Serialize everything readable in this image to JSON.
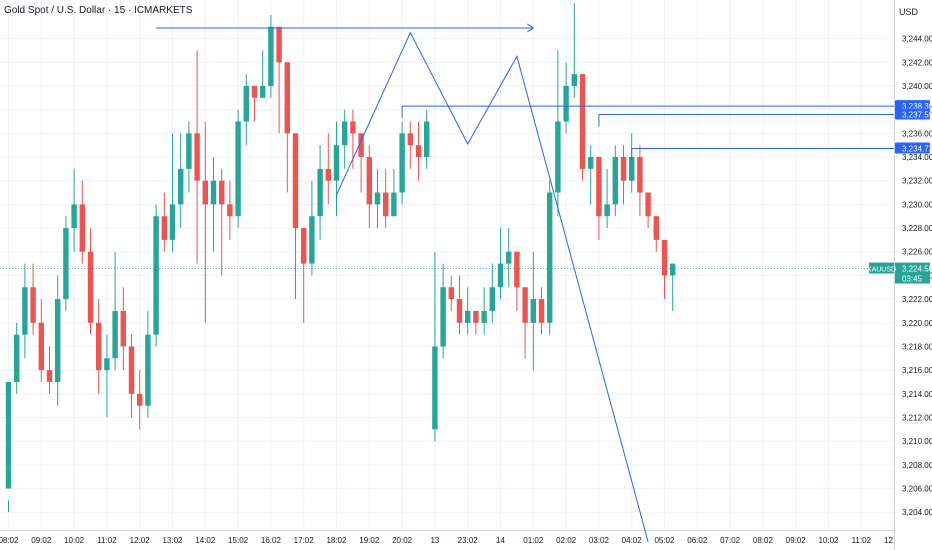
{
  "header": {
    "title": "Gold Spot / U.S. Dollar · 15 · ICMARKETS",
    "currency": "USD"
  },
  "colors": {
    "up": "#26a69a",
    "down": "#ef5350",
    "drawing": "#2962ff",
    "current_line": "#26a69a",
    "grid": "#f0f3fa",
    "axis_text": "#131722"
  },
  "chart_data": {
    "type": "candlestick",
    "symbol": "XAUUSD",
    "ylim": [
      3202.5,
      3246.5
    ],
    "y_ticks": [
      3204,
      3206,
      3208,
      3210,
      3212,
      3214,
      3216,
      3218,
      3220,
      3222,
      3224,
      3226,
      3228,
      3230,
      3232,
      3234,
      3236,
      3238,
      3240,
      3242,
      3244
    ],
    "x_ticks": [
      {
        "label": "08:02",
        "i": 0
      },
      {
        "label": "09:02",
        "i": 4
      },
      {
        "label": "10:02",
        "i": 8
      },
      {
        "label": "11:02",
        "i": 12
      },
      {
        "label": "12:02",
        "i": 16
      },
      {
        "label": "13:02",
        "i": 20
      },
      {
        "label": "14:02",
        "i": 24
      },
      {
        "label": "15:02",
        "i": 28
      },
      {
        "label": "16:02",
        "i": 32
      },
      {
        "label": "17:02",
        "i": 36
      },
      {
        "label": "18:02",
        "i": 40
      },
      {
        "label": "19:02",
        "i": 44
      },
      {
        "label": "20:02",
        "i": 48
      },
      {
        "label": "13",
        "i": 52
      },
      {
        "label": "23:02",
        "i": 56
      },
      {
        "label": "14",
        "i": 60
      },
      {
        "label": "01:02",
        "i": 64
      },
      {
        "label": "02:02",
        "i": 68
      },
      {
        "label": "03:02",
        "i": 72
      },
      {
        "label": "04:02",
        "i": 76
      },
      {
        "label": "05:02",
        "i": 80
      },
      {
        "label": "06:02",
        "i": 84
      },
      {
        "label": "07:02",
        "i": 88
      },
      {
        "label": "08:02",
        "i": 92
      },
      {
        "label": "09:02",
        "i": 96
      },
      {
        "label": "10:02",
        "i": 100
      },
      {
        "label": "11:02",
        "i": 104
      },
      {
        "label": "12:02",
        "i": 108
      }
    ],
    "candles": [
      [
        3206,
        3215,
        3205,
        3204
      ],
      [
        3215,
        3219,
        3220,
        3214
      ],
      [
        3219,
        3223,
        3225,
        3217
      ],
      [
        3223,
        3220,
        3225,
        3219
      ],
      [
        3220,
        3216,
        3222,
        3215
      ],
      [
        3216,
        3215,
        3218,
        3214
      ],
      [
        3215,
        3222,
        3224,
        3213
      ],
      [
        3222,
        3228,
        3229,
        3221
      ],
      [
        3228,
        3230,
        3233,
        3226
      ],
      [
        3230,
        3226,
        3232,
        3225
      ],
      [
        3226,
        3220,
        3228,
        3219
      ],
      [
        3220,
        3216,
        3222,
        3214
      ],
      [
        3216,
        3217,
        3219,
        3212
      ],
      [
        3217,
        3221,
        3226,
        3216
      ],
      [
        3221,
        3218,
        3223,
        3216
      ],
      [
        3218,
        3214,
        3219,
        3212
      ],
      [
        3214,
        3213,
        3216,
        3211
      ],
      [
        3213,
        3219,
        3221,
        3212
      ],
      [
        3219,
        3229,
        3230,
        3218
      ],
      [
        3229,
        3227,
        3231,
        3226
      ],
      [
        3227,
        3230,
        3236,
        3226
      ],
      [
        3230,
        3233,
        3236,
        3228
      ],
      [
        3233,
        3236,
        3237,
        3231
      ],
      [
        3236,
        3232,
        3243,
        3225
      ],
      [
        3232,
        3230,
        3237,
        3220
      ],
      [
        3230,
        3232,
        3234,
        3226
      ],
      [
        3232,
        3230,
        3233,
        3224
      ],
      [
        3230,
        3229,
        3232,
        3227
      ],
      [
        3229,
        3237,
        3238,
        3228
      ],
      [
        3237,
        3240,
        3241,
        3235
      ],
      [
        3240,
        3239,
        3240,
        3237
      ],
      [
        3239,
        3240,
        3243,
        3239
      ],
      [
        3240,
        3245,
        3246,
        3239
      ],
      [
        3245,
        3242,
        3243,
        3236
      ],
      [
        3242,
        3236,
        3238,
        3231
      ],
      [
        3236,
        3228,
        3233,
        3222
      ],
      [
        3228,
        3225,
        3228,
        3220
      ],
      [
        3225,
        3229,
        3232,
        3224
      ],
      [
        3229,
        3233,
        3235,
        3227
      ],
      [
        3233,
        3232,
        3236,
        3230
      ],
      [
        3232,
        3235,
        3237,
        3229
      ],
      [
        3235,
        3237,
        3238,
        3233
      ],
      [
        3237,
        3236,
        3238,
        3233
      ],
      [
        3236,
        3234,
        3236,
        3231
      ],
      [
        3234,
        3230,
        3235,
        3228
      ],
      [
        3230,
        3231,
        3233,
        3228
      ],
      [
        3231,
        3229,
        3233,
        3228
      ],
      [
        3229,
        3231,
        3233,
        3229
      ],
      [
        3231,
        3236,
        3237,
        3230
      ],
      [
        3236,
        3235,
        3237,
        3233
      ],
      [
        3235,
        3234,
        3237,
        3232
      ],
      [
        3234,
        3237,
        3238,
        3233
      ],
      [
        3211,
        3218,
        3226,
        3210
      ],
      [
        3218,
        3223,
        3225,
        3217
      ],
      [
        3223,
        3222,
        3224,
        3221
      ],
      [
        3222,
        3220,
        3224,
        3219
      ],
      [
        3220,
        3221,
        3223,
        3219
      ],
      [
        3221,
        3220,
        3221,
        3219
      ],
      [
        3220,
        3221,
        3223,
        3219
      ],
      [
        3221,
        3223,
        3225,
        3220
      ],
      [
        3223,
        3225,
        3228,
        3222
      ],
      [
        3225,
        3226,
        3228,
        3223
      ],
      [
        3226,
        3223,
        3226,
        3221
      ],
      [
        3223,
        3220,
        3222,
        3217
      ],
      [
        3220,
        3222,
        3226,
        3216
      ],
      [
        3222,
        3220,
        3223,
        3219
      ],
      [
        3220,
        3231,
        3232,
        3219
      ],
      [
        3231,
        3237,
        3243,
        3229
      ],
      [
        3237,
        3240,
        3242,
        3236
      ],
      [
        3240,
        3241,
        3247,
        3239
      ],
      [
        3241,
        3233,
        3241,
        3232
      ],
      [
        3233,
        3234,
        3235,
        3230
      ],
      [
        3234,
        3229,
        3234,
        3227
      ],
      [
        3229,
        3230,
        3233,
        3228
      ],
      [
        3230,
        3234,
        3235,
        3229
      ],
      [
        3234,
        3232,
        3235,
        3230
      ],
      [
        3232,
        3234,
        3236,
        3231
      ],
      [
        3234,
        3231,
        3235,
        3229
      ],
      [
        3231,
        3229,
        3231,
        3228
      ],
      [
        3229,
        3227,
        3229,
        3226
      ],
      [
        3227,
        3224,
        3226,
        3222
      ],
      [
        3224,
        3225,
        3225,
        3221
      ]
    ],
    "horizontal_lines": [
      {
        "from_i": 48,
        "price": 3238.3,
        "label": "3,238.30"
      },
      {
        "from_i": 72,
        "price": 3237.59,
        "label": "3,237.59"
      },
      {
        "from_i": 76,
        "price": 3234.72,
        "label": "3,234.72"
      }
    ],
    "top_arrow": {
      "from_i": 18,
      "to_i": 64,
      "price": 3244.9
    },
    "pattern_path": [
      [
        40,
        3230.8
      ],
      [
        49,
        3244.5
      ],
      [
        56,
        3235.1
      ],
      [
        62,
        3242.5
      ],
      [
        78,
        3201.5
      ]
    ],
    "current_price": {
      "symbol": "XAUUSD",
      "price": 3224.58,
      "label": "3,224.58",
      "countdown": "03:45"
    }
  }
}
